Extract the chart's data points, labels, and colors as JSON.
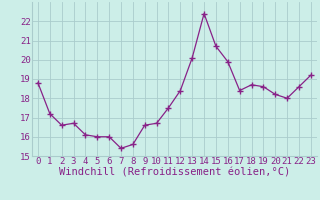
{
  "x": [
    0,
    1,
    2,
    3,
    4,
    5,
    6,
    7,
    8,
    9,
    10,
    11,
    12,
    13,
    14,
    15,
    16,
    17,
    18,
    19,
    20,
    21,
    22,
    23
  ],
  "y": [
    18.8,
    17.2,
    16.6,
    16.7,
    16.1,
    16.0,
    16.0,
    15.4,
    15.6,
    16.6,
    16.7,
    17.5,
    18.4,
    20.1,
    22.4,
    20.7,
    19.9,
    18.4,
    18.7,
    18.6,
    18.2,
    18.0,
    18.6,
    19.2
  ],
  "line_color": "#882288",
  "marker": "+",
  "marker_size": 4,
  "bg_color": "#cceee8",
  "grid_color": "#aacccc",
  "xlabel": "Windchill (Refroidissement éolien,°C)",
  "ylim": [
    15,
    23
  ],
  "yticks": [
    15,
    16,
    17,
    18,
    19,
    20,
    21,
    22
  ],
  "xticks": [
    0,
    1,
    2,
    3,
    4,
    5,
    6,
    7,
    8,
    9,
    10,
    11,
    12,
    13,
    14,
    15,
    16,
    17,
    18,
    19,
    20,
    21,
    22,
    23
  ],
  "xlabel_fontsize": 7.5,
  "tick_fontsize": 6.5,
  "label_color": "#882288"
}
